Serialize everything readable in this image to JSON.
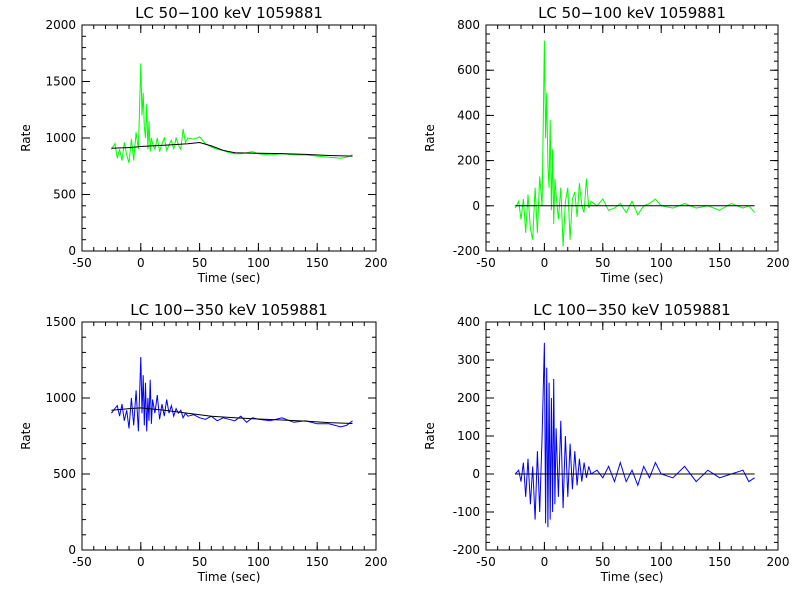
{
  "chart_data": [
    {
      "type": "line",
      "title": "LC 50−100 keV  1059881",
      "xlabel": "Time (sec)",
      "ylabel": "Rate",
      "xlim": [
        -50,
        200
      ],
      "ylim": [
        0,
        2000
      ],
      "xticks": [
        -50,
        0,
        50,
        100,
        150,
        200
      ],
      "yticks": [
        0,
        500,
        1000,
        1500,
        2000
      ],
      "series": [
        {
          "color": "#00ff00",
          "x": [
            -25,
            -22,
            -20,
            -18,
            -16,
            -14,
            -12,
            -10,
            -8,
            -6,
            -4,
            -2,
            0,
            1,
            2,
            3,
            4,
            5,
            6,
            7,
            8,
            9,
            10,
            12,
            14,
            16,
            18,
            20,
            22,
            24,
            26,
            28,
            30,
            32,
            34,
            36,
            38,
            40,
            45,
            50,
            55,
            60,
            65,
            70,
            75,
            80,
            85,
            90,
            95,
            100,
            110,
            120,
            130,
            140,
            150,
            160,
            170,
            175,
            180
          ],
          "y": [
            900,
            950,
            820,
            900,
            800,
            960,
            850,
            780,
            990,
            800,
            1050,
            900,
            1660,
            1200,
            1400,
            1100,
            1000,
            1300,
            900,
            1150,
            880,
            1000,
            950,
            900,
            1000,
            880,
            950,
            1000,
            890,
            940,
            980,
            900,
            1000,
            940,
            900,
            1080,
            960,
            1000,
            990,
            1010,
            950,
            920,
            900,
            890,
            870,
            860,
            860,
            870,
            880,
            860,
            850,
            860,
            850,
            850,
            840,
            830,
            820,
            830,
            850
          ]
        },
        {
          "color": "#000000",
          "x": [
            -25,
            -10,
            0,
            20,
            40,
            50,
            60,
            70,
            80,
            100,
            120,
            140,
            160,
            180
          ],
          "y": [
            910,
            915,
            925,
            935,
            950,
            960,
            930,
            890,
            870,
            865,
            862,
            855,
            845,
            840
          ]
        }
      ]
    },
    {
      "type": "line",
      "title": "LC 50−100 keV  1059881",
      "xlabel": "Time (sec)",
      "ylabel": "Rate",
      "xlim": [
        -50,
        200
      ],
      "ylim": [
        -200,
        800
      ],
      "xticks": [
        -50,
        0,
        50,
        100,
        150,
        200
      ],
      "yticks": [
        -200,
        0,
        200,
        400,
        600,
        800
      ],
      "series": [
        {
          "color": "#00ff00",
          "x": [
            -25,
            -22,
            -20,
            -18,
            -16,
            -14,
            -12,
            -10,
            -8,
            -6,
            -4,
            -2,
            0,
            1,
            2,
            3,
            4,
            5,
            6,
            7,
            8,
            9,
            10,
            12,
            14,
            16,
            18,
            20,
            22,
            24,
            26,
            28,
            30,
            32,
            34,
            36,
            38,
            40,
            45,
            50,
            55,
            60,
            65,
            70,
            75,
            80,
            85,
            90,
            95,
            100,
            110,
            120,
            130,
            140,
            150,
            160,
            170,
            175,
            180
          ],
          "y": [
            -10,
            20,
            -60,
            30,
            -120,
            50,
            -100,
            -150,
            80,
            -120,
            130,
            0,
            730,
            300,
            500,
            180,
            80,
            380,
            -20,
            250,
            -80,
            120,
            50,
            -60,
            80,
            -180,
            20,
            80,
            -150,
            30,
            60,
            -50,
            100,
            0,
            -30,
            120,
            -10,
            20,
            0,
            30,
            -20,
            -10,
            10,
            -30,
            20,
            -40,
            0,
            10,
            30,
            0,
            -10,
            10,
            -10,
            0,
            -20,
            10,
            -10,
            0,
            -30
          ]
        },
        {
          "color": "#000000",
          "x": [
            -25,
            180
          ],
          "y": [
            0,
            0
          ]
        }
      ]
    },
    {
      "type": "line",
      "title": "LC 100−350 keV  1059881",
      "xlabel": "Time (sec)",
      "ylabel": "Rate",
      "xlim": [
        -50,
        200
      ],
      "ylim": [
        0,
        1500
      ],
      "xticks": [
        -50,
        0,
        50,
        100,
        150,
        200
      ],
      "yticks": [
        0,
        500,
        1000,
        1500
      ],
      "series": [
        {
          "color": "#0000ff",
          "x": [
            -25,
            -22,
            -20,
            -18,
            -16,
            -14,
            -12,
            -10,
            -8,
            -6,
            -4,
            -2,
            0,
            1,
            2,
            3,
            4,
            5,
            6,
            7,
            8,
            9,
            10,
            12,
            14,
            16,
            18,
            20,
            22,
            24,
            26,
            28,
            30,
            32,
            34,
            36,
            38,
            40,
            45,
            50,
            55,
            60,
            65,
            70,
            75,
            80,
            85,
            90,
            95,
            100,
            110,
            120,
            130,
            140,
            150,
            160,
            170,
            175,
            180
          ],
          "y": [
            900,
            930,
            950,
            880,
            960,
            850,
            920,
            800,
            1000,
            820,
            1050,
            780,
            1270,
            900,
            1150,
            820,
            1100,
            780,
            1000,
            850,
            1120,
            830,
            990,
            900,
            1020,
            860,
            960,
            880,
            990,
            900,
            950,
            880,
            930,
            900,
            920,
            870,
            900,
            880,
            890,
            870,
            860,
            880,
            850,
            870,
            860,
            850,
            880,
            840,
            870,
            860,
            850,
            870,
            840,
            850,
            830,
            830,
            810,
            820,
            850
          ]
        },
        {
          "color": "#000000",
          "x": [
            -25,
            -10,
            0,
            20,
            40,
            60,
            80,
            100,
            120,
            140,
            160,
            180
          ],
          "y": [
            920,
            930,
            935,
            920,
            900,
            880,
            870,
            862,
            855,
            848,
            838,
            832
          ]
        }
      ]
    },
    {
      "type": "line",
      "title": "LC 100−350 keV  1059881",
      "xlabel": "Time (sec)",
      "ylabel": "Rate",
      "xlim": [
        -50,
        200
      ],
      "ylim": [
        -200,
        400
      ],
      "xticks": [
        -50,
        0,
        50,
        100,
        150,
        200
      ],
      "yticks": [
        -200,
        -100,
        0,
        100,
        200,
        300,
        400
      ],
      "series": [
        {
          "color": "#0000ff",
          "x": [
            -25,
            -22,
            -20,
            -18,
            -16,
            -14,
            -12,
            -10,
            -8,
            -6,
            -4,
            -2,
            0,
            1,
            2,
            3,
            4,
            5,
            6,
            7,
            8,
            9,
            10,
            12,
            14,
            16,
            18,
            20,
            22,
            24,
            26,
            28,
            30,
            32,
            34,
            36,
            38,
            40,
            45,
            50,
            55,
            60,
            65,
            70,
            75,
            80,
            85,
            90,
            95,
            100,
            110,
            120,
            130,
            140,
            150,
            160,
            170,
            175,
            180
          ],
          "y": [
            0,
            10,
            -20,
            30,
            -60,
            40,
            -80,
            20,
            -120,
            60,
            -100,
            100,
            345,
            -130,
            280,
            -140,
            240,
            -120,
            200,
            -100,
            250,
            -80,
            120,
            -60,
            140,
            -90,
            100,
            -60,
            80,
            -40,
            60,
            -30,
            40,
            -20,
            30,
            -10,
            20,
            0,
            10,
            -10,
            20,
            -20,
            30,
            -20,
            10,
            -30,
            20,
            -10,
            30,
            0,
            -10,
            20,
            -20,
            10,
            -10,
            0,
            10,
            -20,
            -10
          ]
        },
        {
          "color": "#000000",
          "x": [
            -25,
            180
          ],
          "y": [
            0,
            0
          ]
        }
      ]
    }
  ]
}
